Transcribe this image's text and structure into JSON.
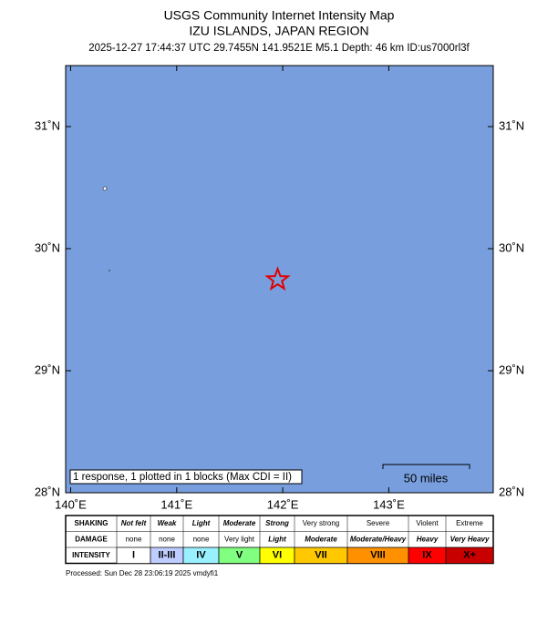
{
  "header": {
    "title": "USGS Community Internet Intensity Map",
    "region": "IZU ISLANDS, JAPAN REGION",
    "event": "2025-12-27 17:44:37 UTC 29.7455N 141.9521E M5.1 Depth: 46 km ID:us7000rl3f"
  },
  "map": {
    "xlim": [
      139.953,
      143.985
    ],
    "ylim": [
      28,
      31.5
    ],
    "xticks": [
      {
        "value": 140,
        "label": "140˚E"
      },
      {
        "value": 141,
        "label": "141˚E"
      },
      {
        "value": 142,
        "label": "142˚E"
      },
      {
        "value": 143,
        "label": "143˚E"
      }
    ],
    "yticks": [
      {
        "value": 28,
        "label": "28˚N"
      },
      {
        "value": 29,
        "label": "29˚N"
      },
      {
        "value": 30,
        "label": "30˚N"
      },
      {
        "value": 31,
        "label": "31˚N"
      }
    ],
    "epicenter": {
      "lon": 141.9521,
      "lat": 29.7455
    },
    "scale_label": "50 miles",
    "note": "1 response, 1 plotted in 1 blocks (Max CDI = II)"
  },
  "legend": {
    "row_labels": [
      "SHAKING",
      "DAMAGE",
      "INTENSITY"
    ],
    "columns": [
      {
        "shaking": "Not felt",
        "damage": "none",
        "intensity": "I",
        "color": "#ffffff"
      },
      {
        "shaking": "Weak",
        "damage": "none",
        "intensity": "II-III",
        "color": "#bfccff"
      },
      {
        "shaking": "Light",
        "damage": "none",
        "intensity": "IV",
        "color": "#99f0ff"
      },
      {
        "shaking": "Moderate",
        "damage": "Very light",
        "intensity": "V",
        "color": "#80ff80"
      },
      {
        "shaking": "Strong",
        "damage": "Light",
        "intensity": "VI",
        "color": "#ffff00"
      },
      {
        "shaking": "Very strong",
        "damage": "Moderate",
        "intensity": "VII",
        "color": "#ffc800"
      },
      {
        "shaking": "Severe",
        "damage": "Moderate/Heavy",
        "intensity": "VIII",
        "color": "#ff9100"
      },
      {
        "shaking": "Violent",
        "damage": "Heavy",
        "intensity": "IX",
        "color": "#ff0000"
      },
      {
        "shaking": "Extreme",
        "damage": "Very Heavy",
        "intensity": "X+",
        "color": "#c80000"
      }
    ]
  },
  "footer": {
    "processed": "Processed: Sun Dec 28 23:06:19 2025 vmdyfi1"
  }
}
